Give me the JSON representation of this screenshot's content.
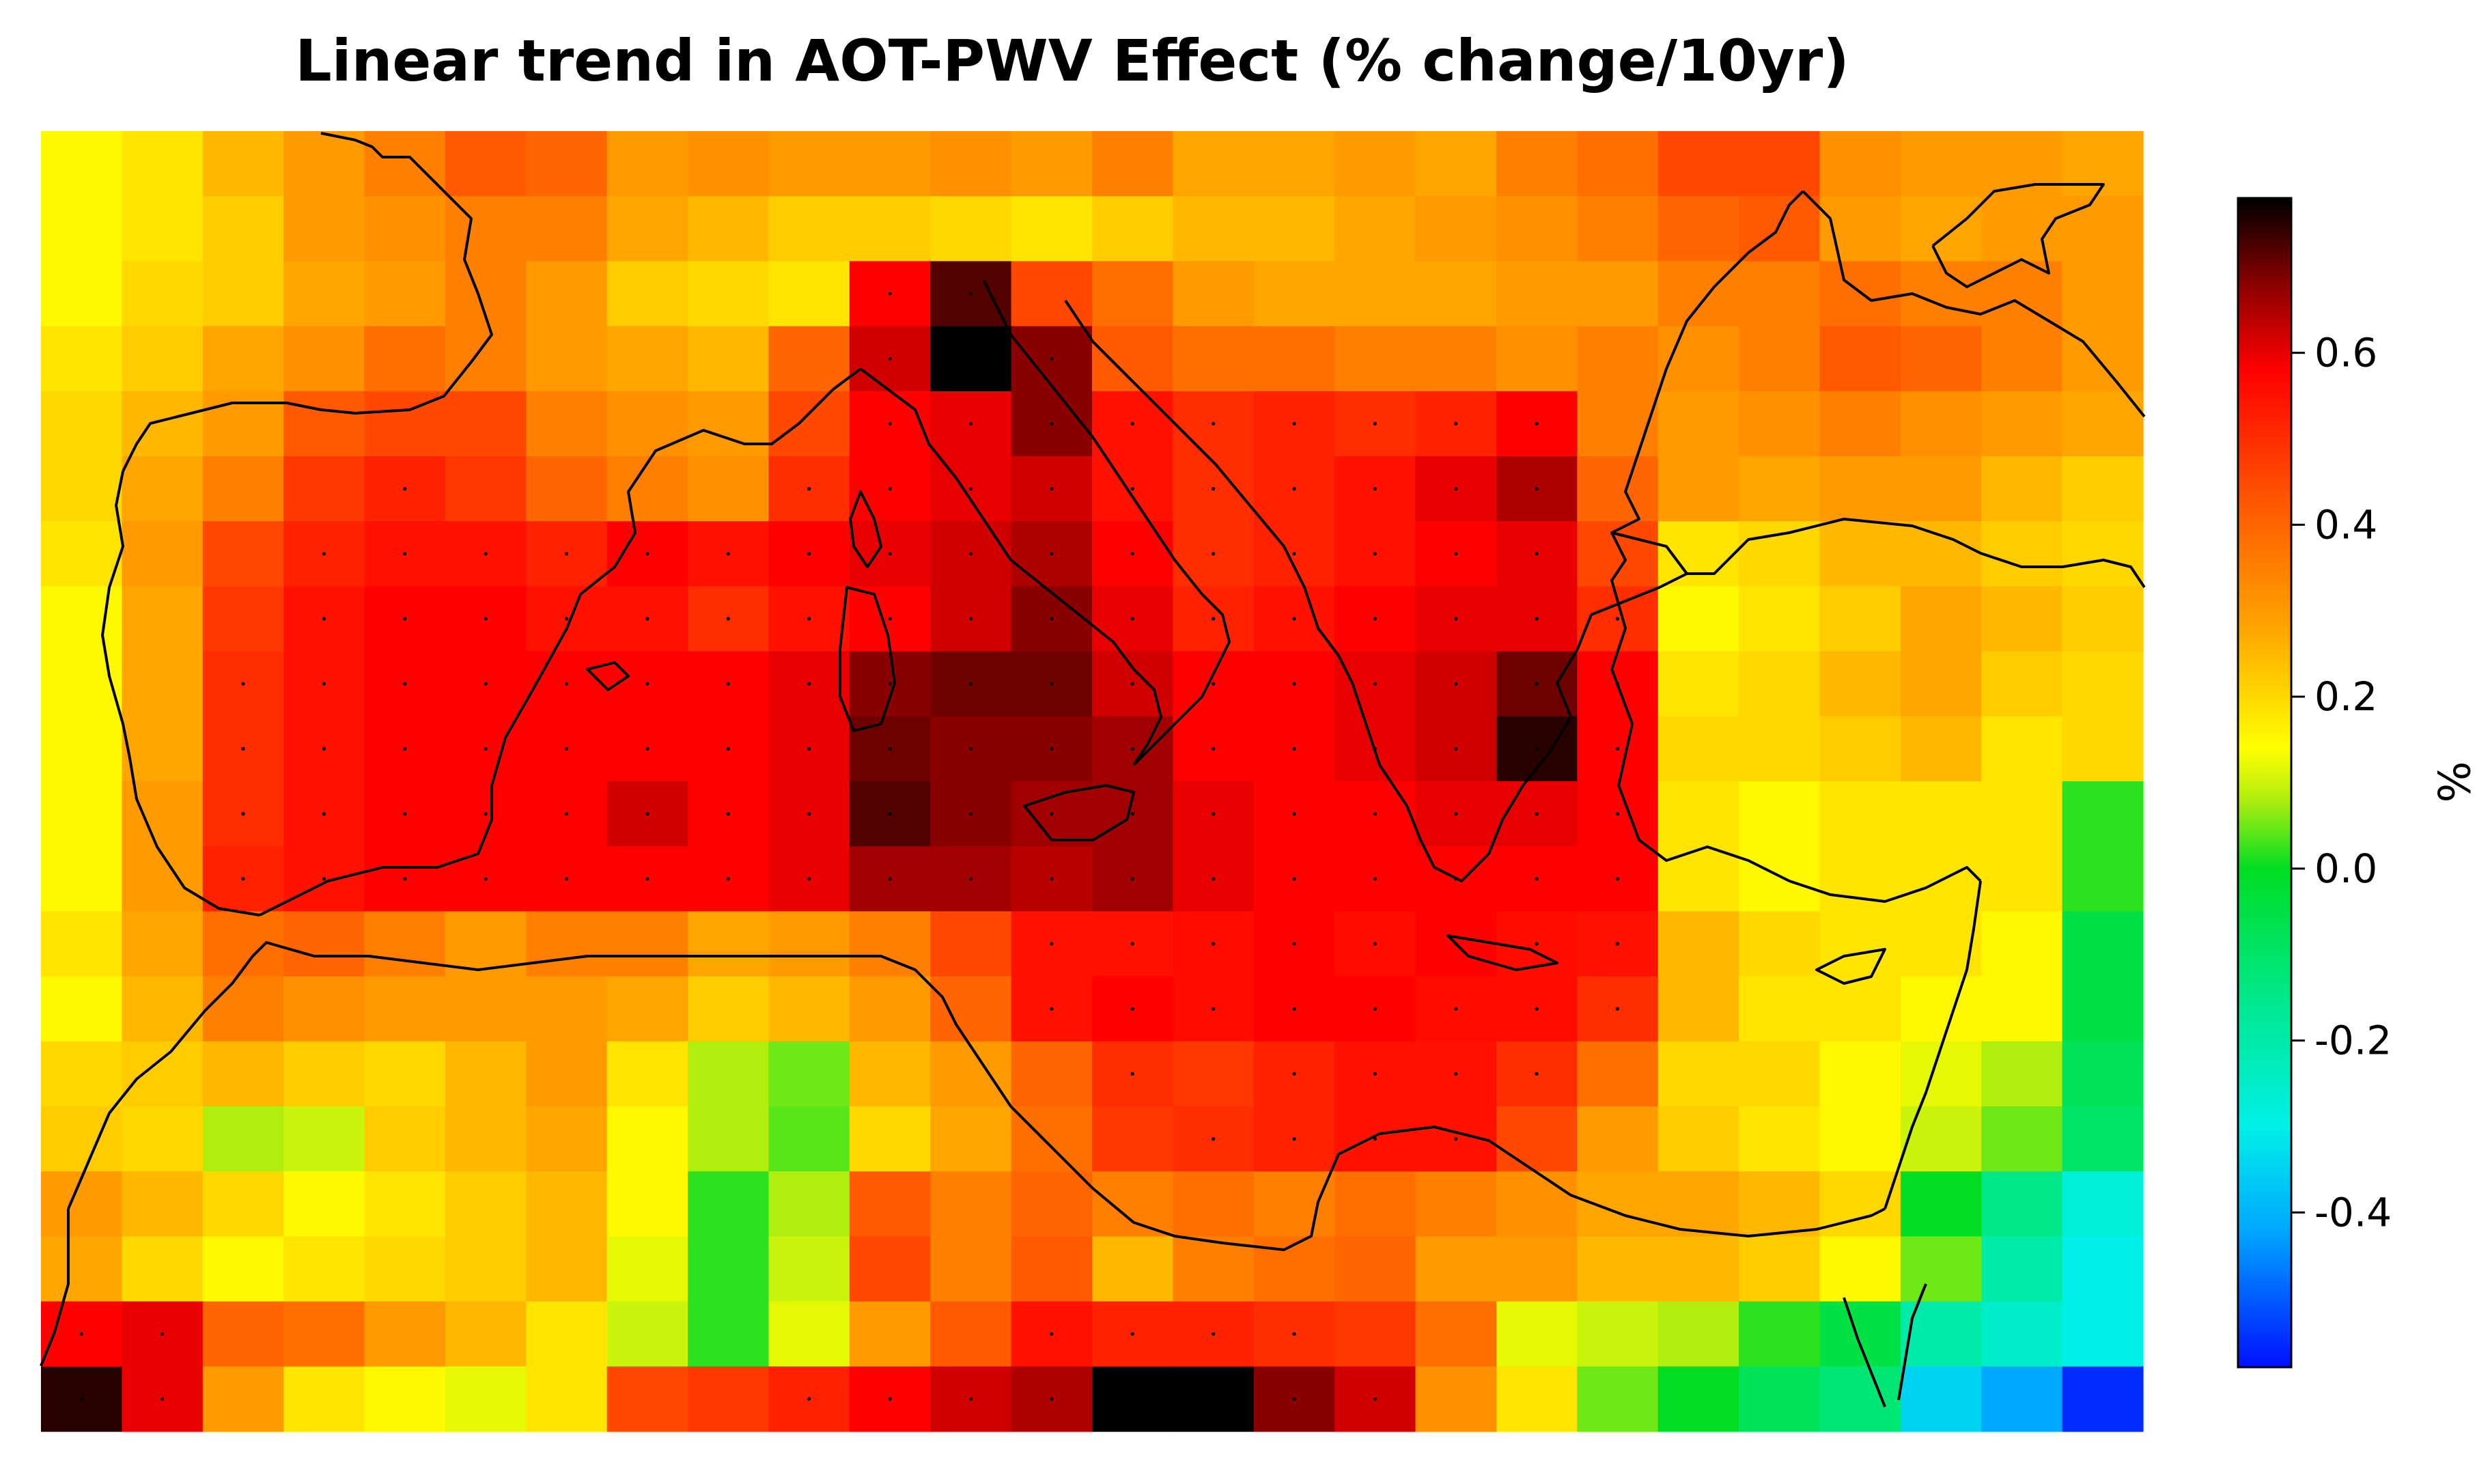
{
  "chart_data": {
    "type": "heatmap",
    "title": "Linear trend in AOT-PWV Effect (% change/10yr)",
    "colorbar": {
      "label": "%",
      "min": -0.58,
      "max": 0.78,
      "ticks": [
        0.6,
        0.4,
        0.2,
        0.0,
        -0.2,
        -0.4
      ],
      "tick_labels": [
        "0.6",
        "0.4",
        "0.2",
        "0.0",
        "-0.2",
        "-0.4"
      ],
      "stops": [
        {
          "value": -0.58,
          "color": "#0010ff"
        },
        {
          "value": -0.42,
          "color": "#00a8ff"
        },
        {
          "value": -0.3,
          "color": "#00f0e8"
        },
        {
          "value": -0.15,
          "color": "#00e88a"
        },
        {
          "value": 0.0,
          "color": "#00dd22"
        },
        {
          "value": 0.08,
          "color": "#b0ee10"
        },
        {
          "value": 0.14,
          "color": "#ffff00"
        },
        {
          "value": 0.28,
          "color": "#ffa500"
        },
        {
          "value": 0.42,
          "color": "#ff5a00"
        },
        {
          "value": 0.58,
          "color": "#ff0000"
        },
        {
          "value": 0.68,
          "color": "#8a0000"
        },
        {
          "value": 0.78,
          "color": "#000000"
        }
      ]
    },
    "grid_rows": 20,
    "grid_cols": 26,
    "trend_grid": [
      [
        0.15,
        0.18,
        0.25,
        0.3,
        0.35,
        0.42,
        0.4,
        0.3,
        0.32,
        0.3,
        0.3,
        0.32,
        0.3,
        0.35,
        0.28,
        0.28,
        0.3,
        0.28,
        0.35,
        0.38,
        0.45,
        0.45,
        0.32,
        0.3,
        0.3,
        0.28
      ],
      [
        0.15,
        0.18,
        0.22,
        0.3,
        0.32,
        0.35,
        0.35,
        0.28,
        0.25,
        0.22,
        0.22,
        0.2,
        0.18,
        0.22,
        0.25,
        0.25,
        0.28,
        0.3,
        0.32,
        0.35,
        0.4,
        0.42,
        0.3,
        0.28,
        0.3,
        0.3
      ],
      [
        0.15,
        0.2,
        0.22,
        0.28,
        0.3,
        0.35,
        0.3,
        0.22,
        0.2,
        0.18,
        0.58,
        0.72,
        0.45,
        0.38,
        0.3,
        0.28,
        0.28,
        0.28,
        0.3,
        0.3,
        0.35,
        0.35,
        0.38,
        0.35,
        0.35,
        0.3
      ],
      [
        0.18,
        0.22,
        0.28,
        0.32,
        0.38,
        0.35,
        0.3,
        0.28,
        0.25,
        0.4,
        0.62,
        0.78,
        0.68,
        0.42,
        0.38,
        0.38,
        0.35,
        0.35,
        0.32,
        0.35,
        0.32,
        0.35,
        0.42,
        0.4,
        0.35,
        0.3
      ],
      [
        0.2,
        0.25,
        0.3,
        0.42,
        0.45,
        0.45,
        0.35,
        0.32,
        0.3,
        0.45,
        0.58,
        0.6,
        0.68,
        0.55,
        0.5,
        0.52,
        0.5,
        0.52,
        0.58,
        0.35,
        0.3,
        0.32,
        0.35,
        0.32,
        0.3,
        0.28
      ],
      [
        0.2,
        0.28,
        0.35,
        0.48,
        0.52,
        0.48,
        0.4,
        0.35,
        0.32,
        0.5,
        0.58,
        0.6,
        0.62,
        0.55,
        0.5,
        0.52,
        0.55,
        0.6,
        0.65,
        0.4,
        0.3,
        0.28,
        0.3,
        0.3,
        0.25,
        0.22
      ],
      [
        0.18,
        0.3,
        0.45,
        0.52,
        0.55,
        0.55,
        0.52,
        0.58,
        0.55,
        0.58,
        0.6,
        0.62,
        0.65,
        0.58,
        0.5,
        0.52,
        0.55,
        0.58,
        0.6,
        0.45,
        0.18,
        0.2,
        0.25,
        0.25,
        0.22,
        0.2
      ],
      [
        0.15,
        0.28,
        0.48,
        0.55,
        0.58,
        0.58,
        0.55,
        0.55,
        0.5,
        0.55,
        0.58,
        0.62,
        0.68,
        0.6,
        0.52,
        0.55,
        0.58,
        0.6,
        0.6,
        0.5,
        0.15,
        0.18,
        0.22,
        0.28,
        0.25,
        0.22
      ],
      [
        0.15,
        0.28,
        0.5,
        0.55,
        0.58,
        0.58,
        0.58,
        0.58,
        0.58,
        0.6,
        0.68,
        0.7,
        0.7,
        0.62,
        0.58,
        0.58,
        0.6,
        0.62,
        0.7,
        0.58,
        0.18,
        0.2,
        0.25,
        0.28,
        0.22,
        0.2
      ],
      [
        0.15,
        0.28,
        0.5,
        0.55,
        0.58,
        0.58,
        0.58,
        0.58,
        0.58,
        0.6,
        0.7,
        0.68,
        0.68,
        0.66,
        0.58,
        0.58,
        0.6,
        0.62,
        0.75,
        0.58,
        0.2,
        0.2,
        0.22,
        0.25,
        0.18,
        0.2
      ],
      [
        0.15,
        0.3,
        0.5,
        0.55,
        0.58,
        0.58,
        0.58,
        0.62,
        0.58,
        0.6,
        0.72,
        0.68,
        0.66,
        0.66,
        0.6,
        0.58,
        0.58,
        0.6,
        0.6,
        0.58,
        0.18,
        0.15,
        0.18,
        0.18,
        0.18,
        0.02
      ],
      [
        0.15,
        0.3,
        0.52,
        0.55,
        0.58,
        0.58,
        0.58,
        0.58,
        0.58,
        0.6,
        0.66,
        0.66,
        0.64,
        0.66,
        0.6,
        0.58,
        0.58,
        0.58,
        0.58,
        0.58,
        0.18,
        0.15,
        0.18,
        0.18,
        0.18,
        0.02
      ],
      [
        0.18,
        0.28,
        0.38,
        0.4,
        0.35,
        0.3,
        0.35,
        0.35,
        0.28,
        0.3,
        0.35,
        0.45,
        0.55,
        0.55,
        0.56,
        0.58,
        0.56,
        0.58,
        0.56,
        0.55,
        0.25,
        0.2,
        0.18,
        0.18,
        0.15,
        -0.05
      ],
      [
        0.15,
        0.25,
        0.35,
        0.32,
        0.3,
        0.3,
        0.3,
        0.28,
        0.22,
        0.25,
        0.3,
        0.4,
        0.55,
        0.58,
        0.56,
        0.58,
        0.58,
        0.56,
        0.56,
        0.5,
        0.25,
        0.18,
        0.18,
        0.15,
        0.15,
        -0.05
      ],
      [
        0.2,
        0.22,
        0.25,
        0.22,
        0.2,
        0.25,
        0.3,
        0.18,
        0.08,
        0.05,
        0.25,
        0.3,
        0.4,
        0.5,
        0.48,
        0.52,
        0.55,
        0.55,
        0.5,
        0.38,
        0.2,
        0.2,
        0.15,
        0.12,
        0.08,
        -0.08
      ],
      [
        0.22,
        0.2,
        0.08,
        0.1,
        0.22,
        0.25,
        0.28,
        0.15,
        0.08,
        0.04,
        0.2,
        0.28,
        0.38,
        0.48,
        0.5,
        0.52,
        0.55,
        0.55,
        0.45,
        0.3,
        0.22,
        0.18,
        0.15,
        0.1,
        0.05,
        -0.1
      ],
      [
        0.3,
        0.25,
        0.2,
        0.15,
        0.18,
        0.22,
        0.25,
        0.15,
        0.02,
        0.08,
        0.42,
        0.35,
        0.4,
        0.35,
        0.38,
        0.35,
        0.38,
        0.35,
        0.32,
        0.28,
        0.28,
        0.25,
        0.2,
        0.0,
        -0.15,
        -0.28
      ],
      [
        0.28,
        0.2,
        0.15,
        0.18,
        0.2,
        0.22,
        0.25,
        0.12,
        0.02,
        0.1,
        0.45,
        0.35,
        0.42,
        0.25,
        0.35,
        0.38,
        0.4,
        0.3,
        0.3,
        0.25,
        0.25,
        0.22,
        0.15,
        0.05,
        -0.2,
        -0.3
      ],
      [
        0.58,
        0.6,
        0.4,
        0.38,
        0.3,
        0.25,
        0.18,
        0.1,
        0.02,
        0.12,
        0.3,
        0.42,
        0.55,
        0.52,
        0.52,
        0.5,
        0.48,
        0.38,
        0.12,
        0.1,
        0.08,
        0.02,
        -0.05,
        -0.2,
        -0.25,
        -0.3
      ],
      [
        0.75,
        0.6,
        0.3,
        0.18,
        0.15,
        0.12,
        0.18,
        0.45,
        0.48,
        0.52,
        0.58,
        0.62,
        0.65,
        0.78,
        0.78,
        0.68,
        0.62,
        0.32,
        0.18,
        0.05,
        0.0,
        -0.08,
        -0.12,
        -0.35,
        -0.42,
        -0.55
      ]
    ]
  }
}
